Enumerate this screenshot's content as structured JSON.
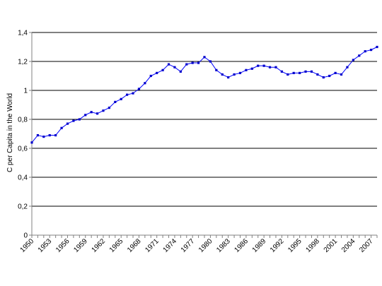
{
  "chart_data": {
    "type": "line",
    "title": "",
    "xlabel": "",
    "ylabel": "C per Capita in the World",
    "ylim": [
      0,
      1.4
    ],
    "y_ticks": [
      "0",
      "0,2",
      "0,4",
      "0,6",
      "0,8",
      "1",
      "1,2",
      "1,4"
    ],
    "y_tick_values": [
      0,
      0.2,
      0.4,
      0.6,
      0.8,
      1.0,
      1.2,
      1.4
    ],
    "x_tick_labels": [
      "1950",
      "1953",
      "1956",
      "1959",
      "1962",
      "1965",
      "1968",
      "1971",
      "1974",
      "1977",
      "1980",
      "1983",
      "1986",
      "1989",
      "1992",
      "1995",
      "1998",
      "2001",
      "2004",
      "2007"
    ],
    "x_tick_years": [
      1950,
      1953,
      1956,
      1959,
      1962,
      1965,
      1968,
      1971,
      1974,
      1977,
      1980,
      1983,
      1986,
      1989,
      1992,
      1995,
      1998,
      2001,
      2004,
      2007
    ],
    "grid": "horizontal",
    "legend": "none",
    "colors": {
      "line": "#0000ff",
      "grid": "#000000",
      "axis": "#808080"
    },
    "x": [
      1950,
      1951,
      1952,
      1953,
      1954,
      1955,
      1956,
      1957,
      1958,
      1959,
      1960,
      1961,
      1962,
      1963,
      1964,
      1965,
      1966,
      1967,
      1968,
      1969,
      1970,
      1971,
      1972,
      1973,
      1974,
      1975,
      1976,
      1977,
      1978,
      1979,
      1980,
      1981,
      1982,
      1983,
      1984,
      1985,
      1986,
      1987,
      1988,
      1989,
      1990,
      1991,
      1992,
      1993,
      1994,
      1995,
      1996,
      1997,
      1998,
      1999,
      2000,
      2001,
      2002,
      2003,
      2004,
      2005,
      2006,
      2007,
      2008
    ],
    "y": [
      0.64,
      0.69,
      0.68,
      0.69,
      0.69,
      0.74,
      0.77,
      0.79,
      0.8,
      0.83,
      0.85,
      0.84,
      0.86,
      0.88,
      0.92,
      0.94,
      0.97,
      0.98,
      1.01,
      1.05,
      1.1,
      1.12,
      1.14,
      1.18,
      1.16,
      1.13,
      1.18,
      1.19,
      1.19,
      1.23,
      1.2,
      1.14,
      1.11,
      1.09,
      1.11,
      1.12,
      1.14,
      1.15,
      1.17,
      1.17,
      1.16,
      1.16,
      1.13,
      1.11,
      1.12,
      1.12,
      1.13,
      1.13,
      1.11,
      1.09,
      1.1,
      1.12,
      1.11,
      1.16,
      1.21,
      1.24,
      1.27,
      1.28,
      1.3
    ]
  }
}
